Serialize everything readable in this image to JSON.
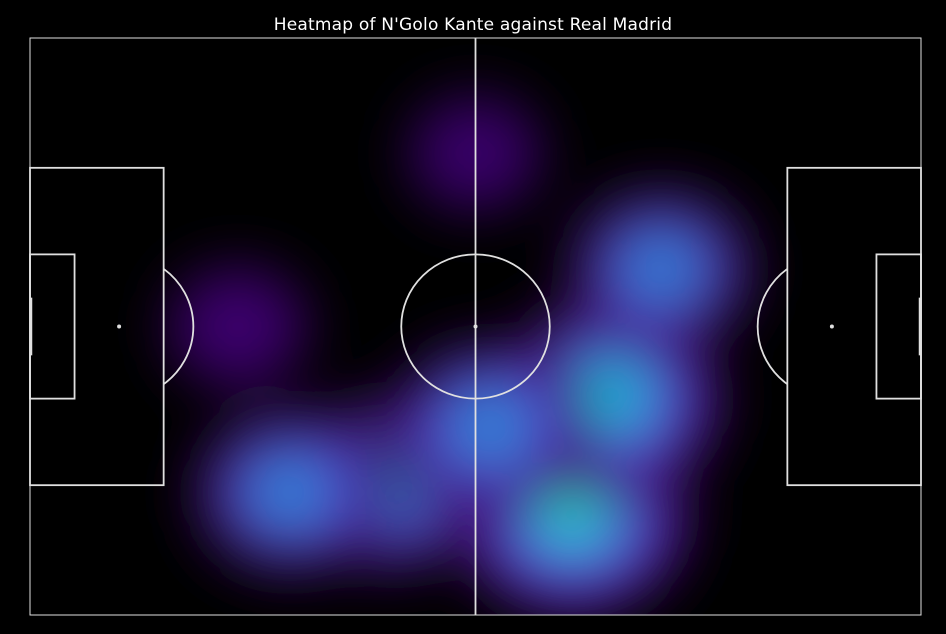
{
  "chart_data": {
    "type": "heatmap",
    "title": "Heatmap of N'Golo Kante against Real Madrid",
    "xlabel": "",
    "ylabel": "",
    "pitch": {
      "length": 120,
      "width": 80,
      "xlim": [
        0,
        120
      ],
      "ylim": [
        0,
        80
      ]
    },
    "grid": false,
    "legend": "none",
    "colormap": [
      "#000000",
      "#2a0f3d",
      "#6a00cc",
      "#4169e1",
      "#1e9bd7",
      "#00ced1",
      "#4dffd2"
    ],
    "density_peaks": [
      {
        "x": 73,
        "y": 66,
        "intensity": 1.0
      },
      {
        "x": 78,
        "y": 50,
        "intensity": 0.9
      },
      {
        "x": 85,
        "y": 32,
        "intensity": 0.55
      },
      {
        "x": 48,
        "y": 62,
        "intensity": 0.7
      },
      {
        "x": 35,
        "y": 63,
        "intensity": 0.6
      },
      {
        "x": 62,
        "y": 54,
        "intensity": 0.65
      },
      {
        "x": 60,
        "y": 16,
        "intensity": 0.15
      },
      {
        "x": 28,
        "y": 40,
        "intensity": 0.2
      }
    ]
  },
  "colors": {
    "background": "#000000",
    "lines": "#e0e0e0",
    "title": "#ffffff"
  }
}
